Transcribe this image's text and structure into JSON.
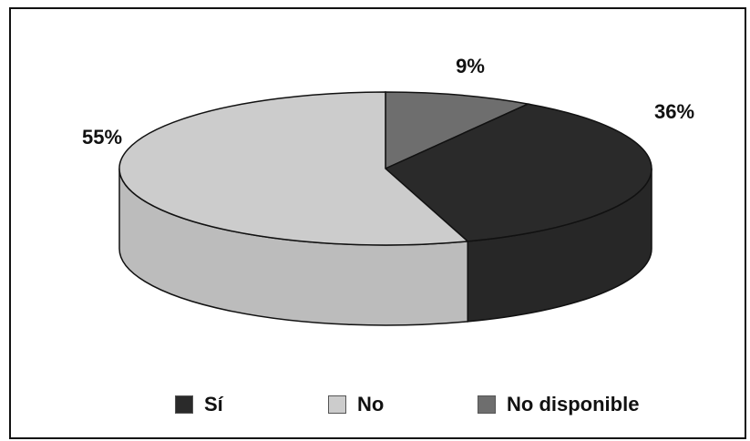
{
  "chart_data": {
    "type": "pie",
    "style": "3d",
    "title": "",
    "slices": [
      {
        "label": "Sí",
        "value": 36,
        "display": "36%",
        "color": "#2a2a2a"
      },
      {
        "label": "No",
        "value": 55,
        "display": "55%",
        "color": "#cccccc"
      },
      {
        "label": "No disponible",
        "value": 9,
        "display": "9%",
        "color": "#6e6e6e"
      }
    ],
    "legend_position": "bottom"
  },
  "legend": {
    "items": [
      {
        "label": "Sí",
        "color": "#2a2a2a"
      },
      {
        "label": "No",
        "color": "#cccccc"
      },
      {
        "label": "No disponible",
        "color": "#6e6e6e"
      }
    ]
  }
}
